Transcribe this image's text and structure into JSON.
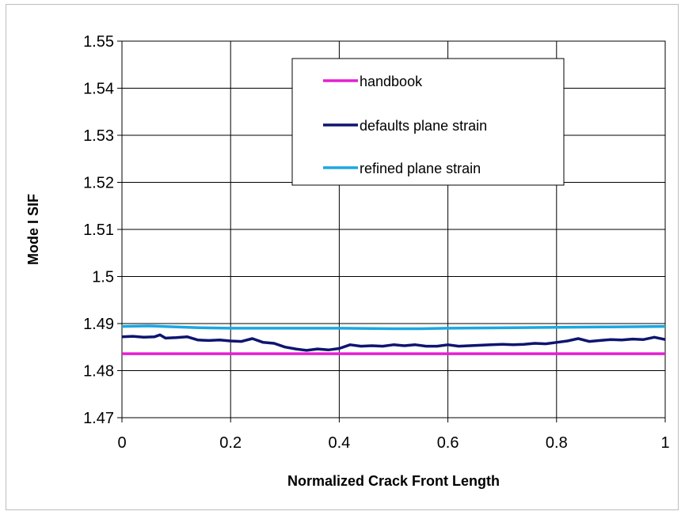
{
  "chart_data": {
    "type": "line",
    "title": "",
    "xlabel": "Normalized Crack Front Length",
    "ylabel": "Mode I SIF",
    "xlim": [
      0,
      1
    ],
    "ylim": [
      1.47,
      1.55
    ],
    "x_ticks": [
      "0",
      "0.2",
      "0.4",
      "0.6",
      "0.8",
      "1"
    ],
    "y_ticks": [
      "1.47",
      "1.48",
      "1.49",
      "1.5",
      "1.51",
      "1.52",
      "1.53",
      "1.54",
      "1.55"
    ],
    "grid": true,
    "legend_position": "top-right",
    "series": [
      {
        "name": "handbook",
        "color": "#e61ed2",
        "x": [
          0,
          1
        ],
        "y": [
          1.4836,
          1.4836
        ]
      },
      {
        "name": "defaults plane strain",
        "color": "#0d1570",
        "x": [
          0,
          0.02,
          0.04,
          0.06,
          0.07,
          0.08,
          0.1,
          0.12,
          0.14,
          0.16,
          0.18,
          0.2,
          0.22,
          0.24,
          0.26,
          0.28,
          0.3,
          0.32,
          0.34,
          0.36,
          0.38,
          0.4,
          0.42,
          0.44,
          0.46,
          0.48,
          0.5,
          0.52,
          0.54,
          0.56,
          0.58,
          0.6,
          0.62,
          0.64,
          0.66,
          0.68,
          0.7,
          0.72,
          0.74,
          0.76,
          0.78,
          0.8,
          0.82,
          0.84,
          0.86,
          0.88,
          0.9,
          0.92,
          0.94,
          0.96,
          0.98,
          1
        ],
        "y": [
          1.4872,
          1.4873,
          1.4871,
          1.4872,
          1.4876,
          1.4869,
          1.487,
          1.4872,
          1.4865,
          1.4864,
          1.4865,
          1.4863,
          1.4862,
          1.4868,
          1.486,
          1.4858,
          1.485,
          1.4846,
          1.4843,
          1.4846,
          1.4844,
          1.4847,
          1.4855,
          1.4852,
          1.4853,
          1.4852,
          1.4855,
          1.4853,
          1.4855,
          1.4852,
          1.4852,
          1.4855,
          1.4852,
          1.4853,
          1.4854,
          1.4855,
          1.4856,
          1.4855,
          1.4856,
          1.4858,
          1.4857,
          1.486,
          1.4863,
          1.4868,
          1.4862,
          1.4864,
          1.4866,
          1.4865,
          1.4867,
          1.4866,
          1.4871,
          1.4866
        ]
      },
      {
        "name": "refined plane strain",
        "color": "#1ba7e0",
        "x": [
          0,
          0.05,
          0.1,
          0.15,
          0.2,
          0.3,
          0.4,
          0.5,
          0.55,
          0.6,
          0.7,
          0.8,
          0.9,
          1
        ],
        "y": [
          1.4894,
          1.4895,
          1.4893,
          1.4891,
          1.489,
          1.489,
          1.489,
          1.4889,
          1.4889,
          1.489,
          1.4891,
          1.4892,
          1.4893,
          1.4894
        ]
      }
    ]
  }
}
